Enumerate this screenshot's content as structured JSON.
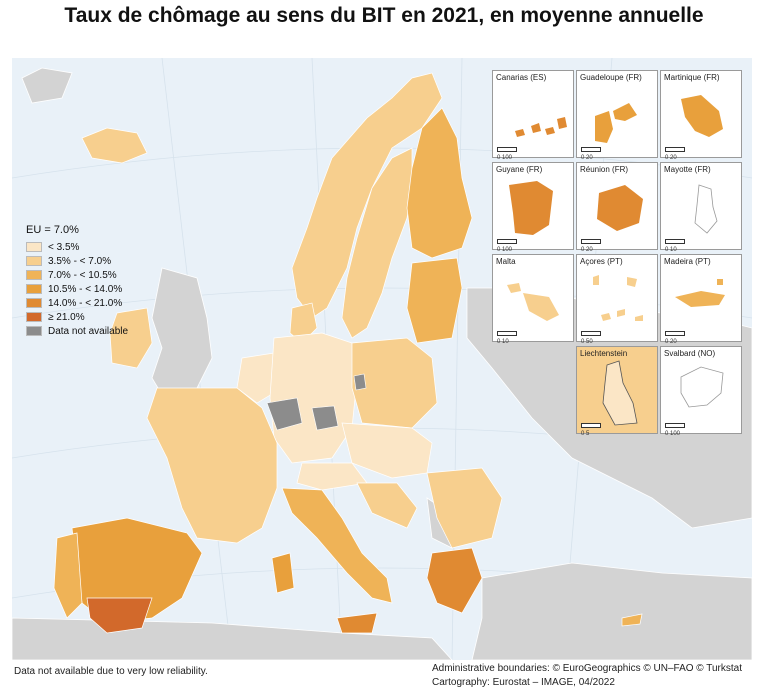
{
  "title": "Taux de chômage au sens du BIT en 2021, en moyenne annuelle",
  "legend": {
    "heading": "EU = 7.0%",
    "classes": [
      {
        "label": "< 3.5%",
        "color": "#fbe6c6"
      },
      {
        "label": "3.5% - < 7.0%",
        "color": "#f7cf8e"
      },
      {
        "label": "7.0% - < 10.5%",
        "color": "#efb357"
      },
      {
        "label": "10.5% - < 14.0%",
        "color": "#e8a03c"
      },
      {
        "label": "14.0% - < 21.0%",
        "color": "#e08a32"
      },
      {
        "label": "≥ 21.0%",
        "color": "#d2692b"
      },
      {
        "label": "Data not available",
        "color": "#8c8c8c"
      }
    ]
  },
  "insets": [
    {
      "name": "Canarias (ES)",
      "scale": "0 100",
      "fill": "#e08a32"
    },
    {
      "name": "Guadeloupe (FR)",
      "scale": "0 20",
      "fill": "#e8a03c"
    },
    {
      "name": "Martinique (FR)",
      "scale": "0 20",
      "fill": "#e8a03c"
    },
    {
      "name": "Guyane (FR)",
      "scale": "0 100",
      "fill": "#e08a32"
    },
    {
      "name": "Réunion (FR)",
      "scale": "0 20",
      "fill": "#e08a32"
    },
    {
      "name": "Mayotte (FR)",
      "scale": "0 10",
      "fill": "#ffffff"
    },
    {
      "name": "Malta",
      "scale": "0 10",
      "fill": "#f7cf8e"
    },
    {
      "name": "Açores (PT)",
      "scale": "0 50",
      "fill": "#f7cf8e"
    },
    {
      "name": "Madeira (PT)",
      "scale": "0 20",
      "fill": "#efb357"
    },
    {
      "name": "Liechtenstein",
      "scale": "0 5",
      "fill": "#fbe6c6"
    },
    {
      "name": "Svalbard (NO)",
      "scale": "0 100",
      "fill": "#ffffff"
    }
  ],
  "footnote_left": "Data not available due to very low reliability.",
  "footnote_right_1": "Administrative boundaries: © EuroGeographics © UN–FAO © Turkstat",
  "footnote_right_2": "Cartography: Eurostat – IMAGE, 04/2022"
}
